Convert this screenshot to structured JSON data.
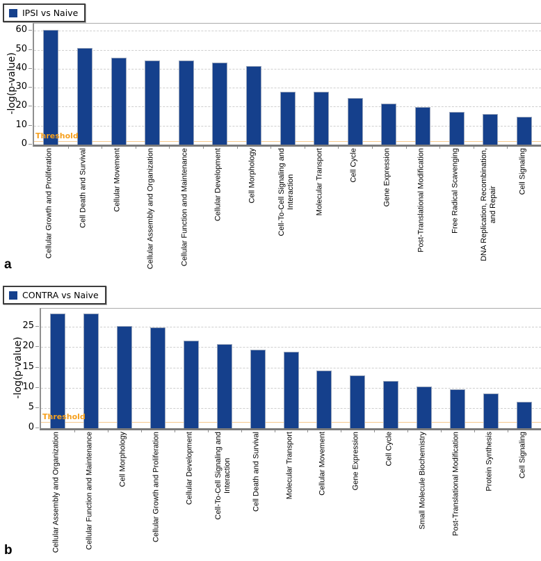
{
  "colors": {
    "bar": "#15408C",
    "bar_edge": "#9aa6bc",
    "threshold_text": "#F6A01E",
    "threshold_line": "#F5C98E",
    "grid": "#CECECE",
    "axis": "#7A7A7A"
  },
  "panels": [
    {
      "letter": "a"
    },
    {
      "letter": "b"
    }
  ],
  "chart_data": [
    {
      "type": "bar",
      "panel": "a",
      "legend": "IPSI vs Naive",
      "legend_position": "top-left",
      "ylabel": "-log(p-value)",
      "ylim": [
        0,
        63.8
      ],
      "yticks": [
        0,
        10,
        20,
        30,
        40,
        50,
        60
      ],
      "grid": "horizontal-dashed",
      "threshold_label": "Threshold",
      "threshold_value": 1.3,
      "categories": [
        "Cellular Growth and Proliferation",
        "Cell Death and Survival",
        "Cellular Movement",
        "Cellular Assembly and Organization",
        "Cellular Function and Maintenance",
        "Cellular Development",
        "Cell Morphology",
        "Cell-To-Cell Signaling and\nInteraction",
        "Molecular Transport",
        "Cell Cycle",
        "Gene Expression",
        "Post-Translational Modification",
        "Free Radical Scavenging",
        "DNA Replication, Recombination,\nand Repair",
        "Cell Signaling"
      ],
      "values": [
        60.5,
        51.0,
        46.0,
        44.5,
        44.4,
        43.4,
        41.3,
        27.7,
        27.7,
        24.4,
        21.6,
        19.8,
        17.2,
        16.1,
        14.6
      ]
    },
    {
      "type": "bar",
      "panel": "b",
      "legend": "CONTRA vs Naive",
      "legend_position": "top-left",
      "ylabel": "-log(p-value)",
      "ylim": [
        0,
        29.5
      ],
      "yticks": [
        0,
        5,
        10,
        15,
        20,
        25
      ],
      "grid": "horizontal-dashed",
      "threshold_label": "Threshold",
      "threshold_value": 1.3,
      "categories": [
        "Cellular Assembly and Organization",
        "Cellular Function and Maintenance",
        "Cell Morphology",
        "Cellular Growth and Proliferation",
        "Cellular Development",
        "Cell-To-Cell Signaling and\nInteraction",
        "Cell Death and Survival",
        "Molecular Transport",
        "Cellular Movement",
        "Gene Expression",
        "Cell Cycle",
        "Small Molecule Biochemistry",
        "Post-Translational Modification",
        "Protein Synthesis",
        "Cell Signaling"
      ],
      "values": [
        28.3,
        28.3,
        25.3,
        24.8,
        21.6,
        20.7,
        19.3,
        18.8,
        14.2,
        13.0,
        11.6,
        10.3,
        9.6,
        8.6,
        6.5
      ]
    }
  ]
}
